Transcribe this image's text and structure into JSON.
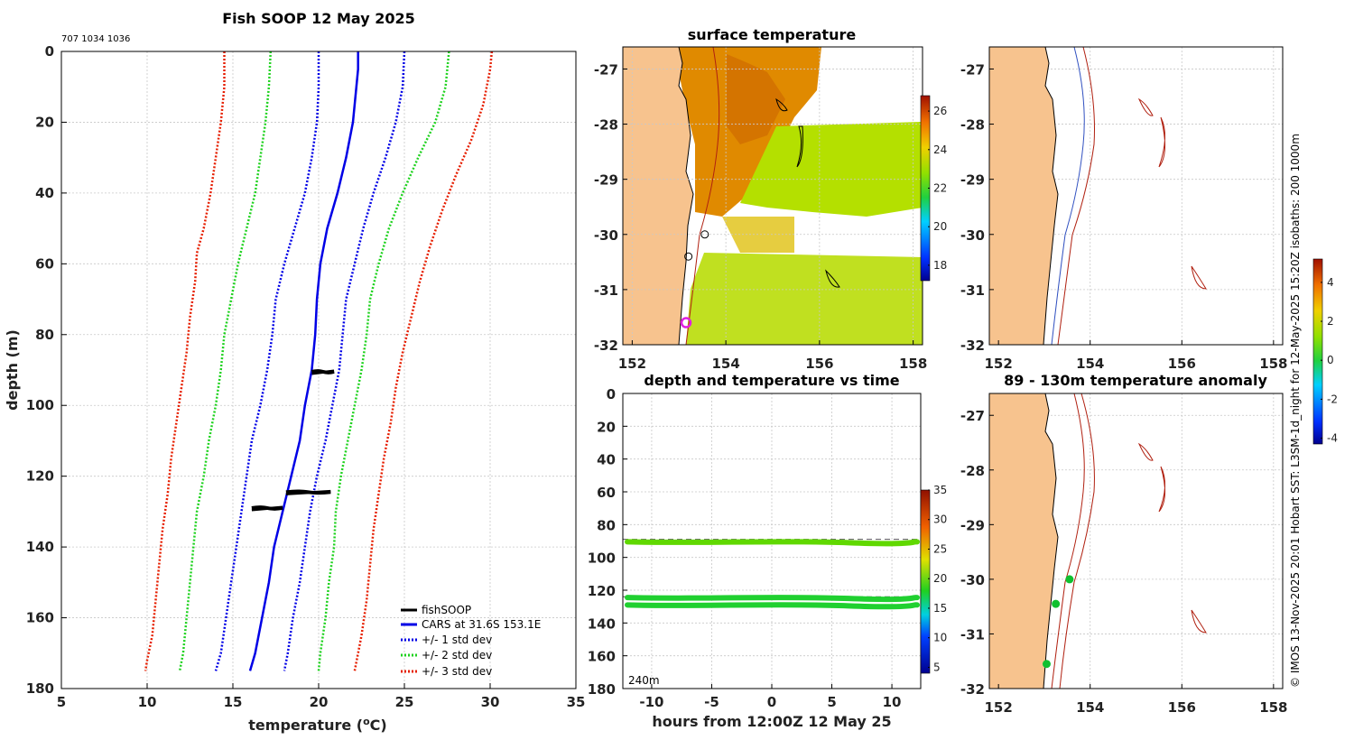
{
  "figure_title": "Fish SOOP 12 May 2025",
  "ids_label": "707 1034 1036",
  "credit": "© IMOS 13-Nov-2025 20:01 Hobart SST: L3SM-1d_night for 12-May-2025 15:20Z isobaths: 200  1000m",
  "colors": {
    "land": "#f7c38e",
    "sst_warm": "#e08a00",
    "sst_green": "#b4e000",
    "cars": "#0000e6",
    "std1": "#0000e6",
    "std2": "#1ed21e",
    "std3": "#e61e00",
    "isobath": "#b02010",
    "isobath_blue": "#3050c0",
    "marker_magenta": "#e020e0",
    "marker_green": "#10c030"
  },
  "chart_data": [
    {
      "id": "profile",
      "type": "line",
      "title": "Fish SOOP 12 May 2025",
      "xlabel": "temperature (",
      "xlabel_sup": "o",
      "xlabel_end": "C)",
      "ylabel": "depth (m)",
      "xlim": [
        5,
        35
      ],
      "ylim": [
        180,
        0
      ],
      "xticks": [
        "5",
        "10",
        "15",
        "20",
        "25",
        "30",
        "35"
      ],
      "yticks": [
        "0",
        "20",
        "40",
        "60",
        "80",
        "100",
        "120",
        "140",
        "160",
        "180"
      ],
      "legend": {
        "position": "bottom-right",
        "entries": [
          "fishSOOP",
          "CARS at 31.6S 153.1E",
          "+/- 1 std dev",
          "+/- 2 std dev",
          "+/- 3 std dev"
        ]
      },
      "series": [
        {
          "name": "CARS at 31.6S 153.1E",
          "style": "solid",
          "color": "#0000e6",
          "points": [
            [
              22.3,
              0
            ],
            [
              22.3,
              5
            ],
            [
              22.2,
              10
            ],
            [
              22.0,
              20
            ],
            [
              21.6,
              30
            ],
            [
              21.1,
              40
            ],
            [
              20.5,
              50
            ],
            [
              20.1,
              60
            ],
            [
              19.9,
              70
            ],
            [
              19.8,
              80
            ],
            [
              19.6,
              90
            ],
            [
              19.2,
              100
            ],
            [
              18.9,
              110
            ],
            [
              18.4,
              120
            ],
            [
              17.9,
              130
            ],
            [
              17.4,
              140
            ],
            [
              17.1,
              150
            ],
            [
              16.7,
              160
            ],
            [
              16.3,
              170
            ],
            [
              16.0,
              175
            ]
          ]
        },
        {
          "name": "+1 std dev",
          "style": "dotted",
          "color": "#0000e6",
          "points": [
            [
              25.0,
              0
            ],
            [
              24.9,
              10
            ],
            [
              24.5,
              20
            ],
            [
              23.9,
              30
            ],
            [
              23.2,
              40
            ],
            [
              22.6,
              50
            ],
            [
              22.1,
              60
            ],
            [
              21.6,
              70
            ],
            [
              21.4,
              80
            ],
            [
              21.2,
              90
            ],
            [
              20.8,
              100
            ],
            [
              20.4,
              110
            ],
            [
              19.9,
              120
            ],
            [
              19.5,
              130
            ],
            [
              19.2,
              140
            ],
            [
              18.9,
              150
            ],
            [
              18.5,
              160
            ],
            [
              18.2,
              170
            ],
            [
              18.0,
              175
            ]
          ]
        },
        {
          "name": "-1 std dev",
          "style": "dotted",
          "color": "#0000e6",
          "points": [
            [
              20.0,
              0
            ],
            [
              20.0,
              10
            ],
            [
              19.9,
              20
            ],
            [
              19.6,
              30
            ],
            [
              19.2,
              40
            ],
            [
              18.6,
              50
            ],
            [
              18.0,
              60
            ],
            [
              17.5,
              70
            ],
            [
              17.3,
              80
            ],
            [
              17.0,
              90
            ],
            [
              16.6,
              100
            ],
            [
              16.1,
              110
            ],
            [
              15.8,
              120
            ],
            [
              15.5,
              130
            ],
            [
              15.2,
              140
            ],
            [
              14.9,
              150
            ],
            [
              14.6,
              160
            ],
            [
              14.3,
              170
            ],
            [
              14.0,
              175
            ]
          ]
        },
        {
          "name": "+2 std dev",
          "style": "dotted",
          "color": "#1ed21e",
          "points": [
            [
              27.6,
              0
            ],
            [
              27.4,
              10
            ],
            [
              26.8,
              20
            ],
            [
              25.8,
              30
            ],
            [
              24.9,
              40
            ],
            [
              24.1,
              50
            ],
            [
              23.5,
              60
            ],
            [
              23.0,
              70
            ],
            [
              22.8,
              80
            ],
            [
              22.5,
              90
            ],
            [
              22.1,
              100
            ],
            [
              21.7,
              110
            ],
            [
              21.3,
              120
            ],
            [
              21.0,
              130
            ],
            [
              20.9,
              140
            ],
            [
              20.6,
              150
            ],
            [
              20.4,
              160
            ],
            [
              20.1,
              170
            ],
            [
              20.0,
              175
            ]
          ]
        },
        {
          "name": "-2 std dev",
          "style": "dotted",
          "color": "#1ed21e",
          "points": [
            [
              17.2,
              0
            ],
            [
              17.1,
              10
            ],
            [
              16.9,
              20
            ],
            [
              16.6,
              30
            ],
            [
              16.3,
              40
            ],
            [
              15.8,
              50
            ],
            [
              15.3,
              60
            ],
            [
              14.9,
              70
            ],
            [
              14.5,
              80
            ],
            [
              14.3,
              90
            ],
            [
              14.0,
              100
            ],
            [
              13.6,
              110
            ],
            [
              13.3,
              120
            ],
            [
              12.9,
              130
            ],
            [
              12.7,
              140
            ],
            [
              12.5,
              150
            ],
            [
              12.3,
              160
            ],
            [
              12.1,
              170
            ],
            [
              11.9,
              175
            ]
          ]
        },
        {
          "name": "+3 std dev",
          "style": "dotted",
          "color": "#e61e00",
          "points": [
            [
              30.1,
              0
            ],
            [
              30.0,
              5
            ],
            [
              29.6,
              15
            ],
            [
              28.9,
              25
            ],
            [
              28.0,
              35
            ],
            [
              27.2,
              45
            ],
            [
              26.5,
              55
            ],
            [
              25.9,
              65
            ],
            [
              25.4,
              75
            ],
            [
              24.9,
              85
            ],
            [
              24.5,
              95
            ],
            [
              24.2,
              105
            ],
            [
              23.8,
              115
            ],
            [
              23.5,
              125
            ],
            [
              23.2,
              135
            ],
            [
              23.0,
              145
            ],
            [
              22.8,
              155
            ],
            [
              22.5,
              165
            ],
            [
              22.3,
              170
            ],
            [
              22.1,
              175
            ]
          ]
        },
        {
          "name": "-3 std dev",
          "style": "dotted",
          "color": "#e61e00",
          "points": [
            [
              14.5,
              0
            ],
            [
              14.5,
              10
            ],
            [
              14.3,
              20
            ],
            [
              14.0,
              30
            ],
            [
              13.7,
              40
            ],
            [
              13.3,
              50
            ],
            [
              12.9,
              57
            ],
            [
              12.8,
              65
            ],
            [
              12.5,
              75
            ],
            [
              12.3,
              85
            ],
            [
              12.0,
              95
            ],
            [
              11.7,
              105
            ],
            [
              11.4,
              115
            ],
            [
              11.2,
              125
            ],
            [
              10.9,
              135
            ],
            [
              10.7,
              145
            ],
            [
              10.5,
              155
            ],
            [
              10.3,
              165
            ],
            [
              10.0,
              172
            ],
            [
              9.9,
              175
            ]
          ]
        }
      ],
      "observations": [
        {
          "name": "fishSOOP",
          "x_range": [
            19.6,
            20.9
          ],
          "depth": 90.5
        },
        {
          "name": "fishSOOP",
          "x_range": [
            18.1,
            20.7
          ],
          "depth": 124.5
        },
        {
          "name": "fishSOOP",
          "x_range": [
            16.1,
            17.9
          ],
          "depth": 129
        }
      ]
    },
    {
      "id": "sst_map",
      "type": "heatmap",
      "title": "surface temperature",
      "xticks": [
        "152",
        "154",
        "156",
        "158"
      ],
      "yticks": [
        "-27",
        "-28",
        "-29",
        "-30",
        "-31",
        "-32"
      ],
      "xlim": [
        151.8,
        158.2
      ],
      "ylim": [
        -32,
        -26.6
      ],
      "colorbar": {
        "ticks": [
          "18",
          "20",
          "22",
          "24",
          "26"
        ],
        "range": [
          17.2,
          26.8
        ]
      },
      "markers": [
        {
          "lon": 153.15,
          "lat": -31.6,
          "type": "magenta-ring"
        },
        {
          "lon": 153.55,
          "lat": -30.0
        },
        {
          "lon": 153.2,
          "lat": -30.4
        }
      ]
    },
    {
      "id": "depth_time",
      "type": "scatter",
      "title": "depth and temperature vs time",
      "xlabel": "hours from 12:00Z 12 May 25",
      "xticks": [
        "-10",
        "-5",
        "0",
        "5",
        "10"
      ],
      "yticks": [
        "0",
        "20",
        "40",
        "60",
        "80",
        "100",
        "120",
        "140",
        "160",
        "180"
      ],
      "xlim": [
        -12.4,
        12.4
      ],
      "ylim": [
        180,
        0
      ],
      "depth_note": "240m",
      "dashed_levels": [
        89,
        124
      ],
      "bands": [
        {
          "depth": 90.5,
          "temp": 22
        },
        {
          "depth": 124.5,
          "temp": 20
        },
        {
          "depth": 129,
          "temp": 18.5
        }
      ],
      "colorbar": {
        "ticks": [
          "5",
          "10",
          "15",
          "20",
          "25",
          "30",
          "35"
        ],
        "range": [
          4,
          35
        ]
      }
    },
    {
      "id": "isobath_map",
      "type": "map",
      "title": "",
      "xticks": [
        "152",
        "154",
        "156",
        "158"
      ],
      "yticks": [
        "-27",
        "-28",
        "-29",
        "-30",
        "-31",
        "-32"
      ]
    },
    {
      "id": "anomaly_map",
      "type": "map",
      "title": "89 - 130m temperature anomaly",
      "xticks": [
        "152",
        "154",
        "156",
        "158"
      ],
      "yticks": [
        "-27",
        "-28",
        "-29",
        "-30",
        "-31",
        "-32"
      ],
      "markers": [
        {
          "lon": 153.55,
          "lat": -30.0
        },
        {
          "lon": 153.25,
          "lat": -30.45
        },
        {
          "lon": 153.05,
          "lat": -31.55
        }
      ],
      "colorbar": {
        "ticks": [
          "-4",
          "-2",
          "0",
          "2",
          "4"
        ],
        "range": [
          -4.3,
          5.2
        ]
      }
    }
  ]
}
